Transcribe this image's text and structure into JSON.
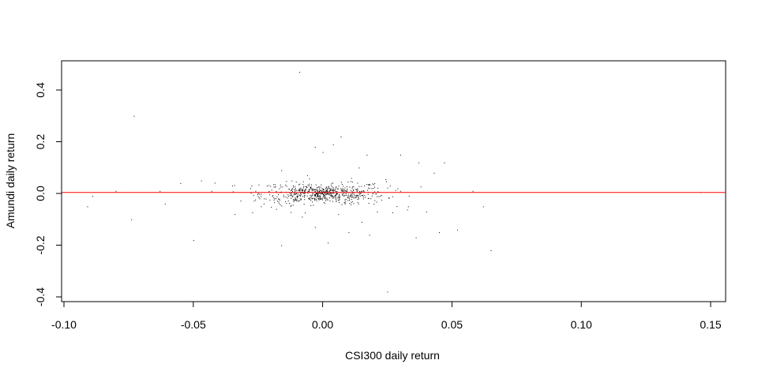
{
  "chart_data": {
    "type": "scatter",
    "title": "",
    "xlabel": "CSI300 daily return",
    "ylabel": "Amundi daily return",
    "xlim": [
      -0.1,
      0.155
    ],
    "ylim": [
      -0.42,
      0.5
    ],
    "x_ticks": [
      {
        "value": -0.1,
        "label": "-0.10"
      },
      {
        "value": -0.05,
        "label": "-0.05"
      },
      {
        "value": 0.0,
        "label": "0.00"
      },
      {
        "value": 0.05,
        "label": "0.05"
      },
      {
        "value": 0.1,
        "label": "0.10"
      },
      {
        "value": 0.15,
        "label": "0.15"
      }
    ],
    "y_ticks": [
      {
        "value": -0.4,
        "label": "-0.4"
      },
      {
        "value": -0.2,
        "label": "-0.2"
      },
      {
        "value": 0.0,
        "label": "0.0"
      },
      {
        "value": 0.2,
        "label": "0.2"
      },
      {
        "value": 0.4,
        "label": "0.4"
      }
    ],
    "reference_line": {
      "type": "horizontal",
      "y": 0.004,
      "color": "#ff0000"
    },
    "point_color": "#000000",
    "grid": false,
    "legend": "none",
    "points": [
      {
        "x": -0.009,
        "y": 0.47
      },
      {
        "x": -0.073,
        "y": 0.3
      },
      {
        "x": 0.007,
        "y": 0.22
      },
      {
        "x": 0.004,
        "y": 0.19
      },
      {
        "x": -0.003,
        "y": 0.18
      },
      {
        "x": 0.0,
        "y": 0.16
      },
      {
        "x": 0.017,
        "y": 0.15
      },
      {
        "x": 0.03,
        "y": 0.15
      },
      {
        "x": 0.047,
        "y": 0.12
      },
      {
        "x": 0.037,
        "y": 0.12
      },
      {
        "x": 0.014,
        "y": 0.1
      },
      {
        "x": -0.016,
        "y": 0.09
      },
      {
        "x": -0.055,
        "y": 0.04
      },
      {
        "x": -0.047,
        "y": 0.05
      },
      {
        "x": -0.035,
        "y": 0.03
      },
      {
        "x": -0.089,
        "y": -0.01
      },
      {
        "x": -0.091,
        "y": -0.05
      },
      {
        "x": -0.074,
        "y": -0.1
      },
      {
        "x": -0.05,
        "y": -0.18
      },
      {
        "x": -0.016,
        "y": -0.2
      },
      {
        "x": -0.034,
        "y": -0.08
      },
      {
        "x": 0.025,
        "y": -0.38
      },
      {
        "x": 0.065,
        "y": -0.22
      },
      {
        "x": 0.052,
        "y": -0.14
      },
      {
        "x": 0.045,
        "y": -0.15
      },
      {
        "x": 0.036,
        "y": -0.17
      },
      {
        "x": 0.018,
        "y": -0.16
      },
      {
        "x": 0.01,
        "y": -0.15
      },
      {
        "x": 0.002,
        "y": -0.19
      },
      {
        "x": 0.062,
        "y": -0.05
      },
      {
        "x": 0.058,
        "y": 0.01
      },
      {
        "x": 0.146,
        "y": 0.005
      },
      {
        "x": -0.08,
        "y": 0.01
      },
      {
        "x": -0.063,
        "y": 0.01
      },
      {
        "x": -0.061,
        "y": -0.04
      },
      {
        "x": -0.043,
        "y": 0.01
      },
      {
        "x": -0.028,
        "y": 0.02
      },
      {
        "x": -0.022,
        "y": -0.02
      },
      {
        "x": -0.012,
        "y": 0.05
      },
      {
        "x": -0.006,
        "y": 0.07
      },
      {
        "x": 0.011,
        "y": 0.06
      },
      {
        "x": 0.02,
        "y": 0.04
      },
      {
        "x": 0.026,
        "y": 0.03
      },
      {
        "x": 0.033,
        "y": -0.05
      },
      {
        "x": 0.04,
        "y": -0.07
      },
      {
        "x": 0.043,
        "y": 0.08
      },
      {
        "x": -0.008,
        "y": -0.09
      },
      {
        "x": 0.006,
        "y": -0.08
      },
      {
        "x": 0.015,
        "y": -0.11
      },
      {
        "x": -0.003,
        "y": -0.13
      },
      {
        "x": 0.021,
        "y": -0.07
      },
      {
        "x": -0.018,
        "y": -0.06
      },
      {
        "x": -0.026,
        "y": 0.01
      },
      {
        "x": 0.03,
        "y": 0.01
      }
    ],
    "cluster": {
      "x_center": 0.0,
      "x_spread": 0.012,
      "y_center": 0.0,
      "y_spread": 0.025,
      "count": 650
    }
  }
}
